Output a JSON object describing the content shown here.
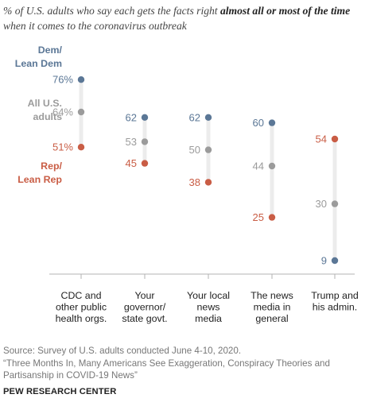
{
  "subtitle": {
    "prefix": "% of U.S. adults who say each gets the facts right ",
    "bold": "almost all or most of the time",
    "suffix": " when it comes to the coronavirus outbreak"
  },
  "chart_data": {
    "type": "dot",
    "title": "",
    "categories": [
      [
        "CDC and",
        "other public",
        "health orgs."
      ],
      [
        "Your",
        "governor/",
        "state govt."
      ],
      [
        "Your local",
        "news",
        "media"
      ],
      [
        "The news",
        "media in",
        "general"
      ],
      [
        "Trump and",
        "his admin."
      ]
    ],
    "series": [
      {
        "name": "Dem/ Lean Dem",
        "label_lines": [
          "Dem/",
          "Lean Dem"
        ],
        "color": "#5b7796",
        "values": [
          76,
          62,
          62,
          60,
          9
        ]
      },
      {
        "name": "All U.S. adults",
        "label_lines": [
          "All U.S.",
          "adults"
        ],
        "color": "#9b9b9b",
        "values": [
          64,
          53,
          50,
          44,
          30
        ]
      },
      {
        "name": "Rep/ Lean Rep",
        "label_lines": [
          "Rep/",
          "Lean Rep"
        ],
        "color": "#c95d45",
        "values": [
          51,
          45,
          38,
          25,
          54
        ]
      }
    ],
    "value_labels": [
      [
        "76%",
        "62",
        "62",
        "60",
        "9"
      ],
      [
        "64%",
        "53",
        "50",
        "44",
        "30"
      ],
      [
        "51%",
        "45",
        "38",
        "25",
        "54"
      ]
    ],
    "grid": false,
    "legend": "left"
  },
  "footer": {
    "source": "Source: Survey of U.S. adults conducted June 4-10, 2020.",
    "note": "“Three Months In, Many Americans See Exaggeration, Conspiracy Theories and Partisanship in COVID-19 News”",
    "brand": "PEW RESEARCH CENTER"
  }
}
